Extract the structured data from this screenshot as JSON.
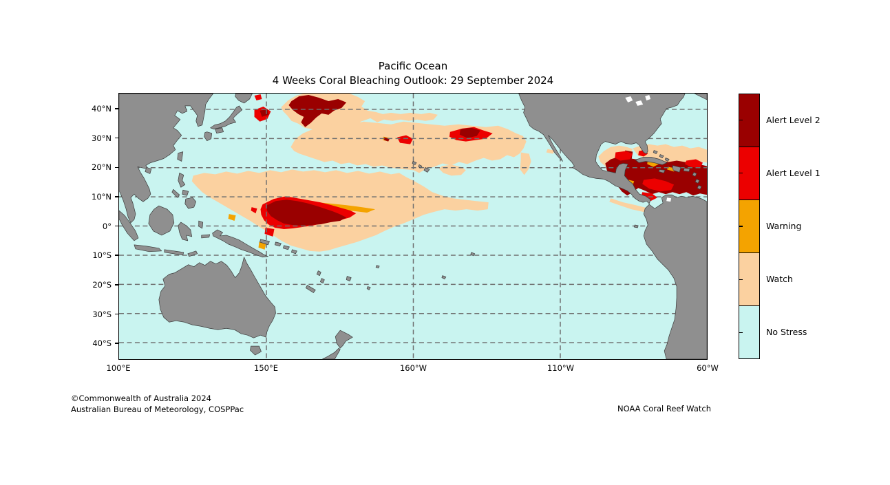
{
  "title": {
    "line1": "Pacific Ocean",
    "line2": "4 Weeks Coral Bleaching Outlook: 29 September 2024"
  },
  "axes": {
    "lat_ticks": [
      "40°N",
      "30°N",
      "20°N",
      "10°N",
      "0°",
      "10°S",
      "20°S",
      "30°S",
      "40°S"
    ],
    "lon_ticks": [
      "100°E",
      "150°E",
      "160°W",
      "110°W",
      "60°W"
    ]
  },
  "legend": {
    "items": [
      {
        "key": "alert2",
        "label": "Alert Level 2",
        "color": "#9A0000"
      },
      {
        "key": "alert1",
        "label": "Alert Level 1",
        "color": "#EC0000"
      },
      {
        "key": "warning",
        "label": "Warning",
        "color": "#F4A300"
      },
      {
        "key": "watch",
        "label": "Watch",
        "color": "#FBD1A0"
      },
      {
        "key": "nostress",
        "label": "No Stress",
        "color": "#C9F4F0"
      }
    ]
  },
  "map": {
    "land_color": "#8F8F8F",
    "coastline_color": "#3C3C3C",
    "gridline_color": "#6F6F6F",
    "lake_color": "#FFFFFF"
  },
  "footer": {
    "copyright_line1": "©Commonwealth of Australia 2024",
    "copyright_line2": "Australian Bureau of Meteorology, COSPPac",
    "credit": "NOAA Coral Reef Watch"
  }
}
